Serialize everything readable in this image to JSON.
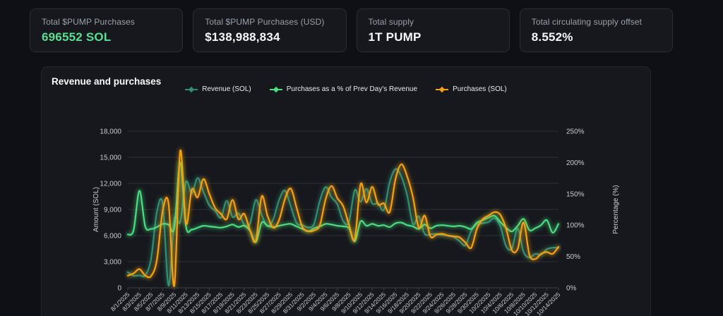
{
  "stats": [
    {
      "label": "Total $PUMP Purchases",
      "value": "696552 SOL",
      "value_color": "#57e094"
    },
    {
      "label": "Total $PUMP Purchases (USD)",
      "value": "$138,988,834",
      "value_color": "#f6f7f9"
    },
    {
      "label": "Total supply",
      "value": "1T PUMP",
      "value_color": "#f6f7f9"
    },
    {
      "label": "Total circulating supply offset",
      "value": "8.552%",
      "value_color": "#f6f7f9"
    }
  ],
  "chart_data": {
    "type": "line",
    "title": "Revenue and purchases",
    "xlabel": "",
    "ylabel_left": "Amount (SOL)",
    "ylabel_right": "Percentage (%)",
    "ylim_left": [
      0,
      18000
    ],
    "ylim_right_percent": [
      0,
      250
    ],
    "y_left_tick_labels": [
      "0",
      "3,000",
      "6,000",
      "9,000",
      "12,000",
      "15,000",
      "18,000"
    ],
    "y_right_tick_labels": [
      "0%",
      "50%",
      "100%",
      "150%",
      "200%",
      "250%"
    ],
    "grid": "horizontal-only",
    "legend_position": "top-center",
    "x_start": "8/1/2025",
    "x_end": "10/14/2025",
    "x_step_days": 1,
    "x_tick_labels": [
      "8/1/2025",
      "8/3/2025",
      "8/5/2025",
      "8/7/2025",
      "8/9/2025",
      "8/11/2025",
      "8/13/2025",
      "8/15/2025",
      "8/17/2025",
      "8/19/2025",
      "8/21/2025",
      "8/23/2025",
      "8/25/2025",
      "8/27/2025",
      "8/29/2025",
      "8/31/2025",
      "9/2/2025",
      "9/4/2025",
      "9/6/2025",
      "9/8/2025",
      "9/10/2025",
      "9/12/2025",
      "9/14/2025",
      "9/16/2025",
      "9/18/2025",
      "9/20/2025",
      "9/22/2025",
      "9/24/2025",
      "9/26/2025",
      "9/28/2025",
      "9/30/2025",
      "10/2/2025",
      "10/4/2025",
      "10/6/2025",
      "10/8/2025",
      "10/10/2025",
      "10/12/2025",
      "10/14/2025"
    ],
    "series": [
      {
        "name": "Revenue (SOL)",
        "axis": "left",
        "color": "#2f8e74",
        "values": [
          1793,
          1387,
          1429,
          1436,
          3299,
          8725,
          9604,
          260,
          7850,
          7551,
          12151,
          10833,
          12626,
          11020,
          9485,
          8854,
          8061,
          10000,
          8144,
          8586,
          7253,
          7397,
          10096,
          8384,
          7113,
          7879,
          10099,
          11176,
          9388,
          7447,
          7222,
          6947,
          7347,
          10000,
          11584,
          10404,
          9592,
          7684,
          7568,
          11226,
          9899,
          11373,
          9697,
          9700,
          8969,
          12136,
          13654,
          12800,
          10612,
          7340,
          8218,
          6211,
          6162,
          6200,
          6061,
          6020,
          5859,
          5361,
          4894,
          6538,
          7315,
          7411,
          7565,
          8000,
          7083,
          4778,
          4545,
          6818,
          4130,
          3474,
          3900,
          3796,
          4432,
          4608,
          4600
        ]
      },
      {
        "name": "Purchases as a % of Prev Day's Revenue",
        "axis": "right",
        "color": "#4ade80",
        "values": [
          85,
          92,
          155,
          98,
          94,
          97,
          102,
          101,
          96,
          200,
          98,
          93,
          96,
          99,
          98,
          97,
          96,
          98,
          101,
          97,
          99,
          91,
          73,
          104,
          99,
          97,
          99,
          101,
          102,
          98,
          94,
          90,
          95,
          98,
          102,
          101,
          99,
          98,
          95,
          74,
          106,
          99,
          102,
          99,
          100,
          97,
          103,
          104,
          100,
          98,
          94,
          101,
          95,
          99,
          100,
          99,
          98,
          99,
          97,
          94,
          104,
          108,
          112,
          115,
          105,
          96,
          90,
          99,
          110,
          92,
          95,
          100,
          108,
          88,
          102
        ]
      },
      {
        "name": "Purchases (SOL)",
        "axis": "left",
        "color": "#f5a114",
        "values": [
          1400,
          1650,
          2150,
          1400,
          1350,
          3200,
          8900,
          9700,
          250,
          15700,
          7400,
          11300,
          10400,
          12500,
          10800,
          9200,
          8500,
          7900,
          10100,
          7900,
          8500,
          6600,
          5400,
          10500,
          8300,
          6900,
          7800,
          10200,
          11400,
          9200,
          7000,
          6500,
          6600,
          7200,
          10200,
          11700,
          10300,
          9400,
          7300,
          5600,
          11900,
          9800,
          11600,
          9600,
          9700,
          8700,
          12500,
          14200,
          12800,
          10400,
          6900,
          8300,
          5900,
          6100,
          6200,
          6000,
          5900,
          5800,
          5200,
          4600,
          6800,
          7900,
          8300,
          8700,
          8400,
          6800,
          4300,
          4500,
          7500,
          3800,
          3300,
          3900,
          4100,
          3900,
          4700
        ]
      }
    ],
    "colors": {
      "grid": "#2c2f36",
      "axis": "#3c3f47",
      "tick_text": "#c9ccd3",
      "axis_title": "#c9ccd3"
    }
  }
}
